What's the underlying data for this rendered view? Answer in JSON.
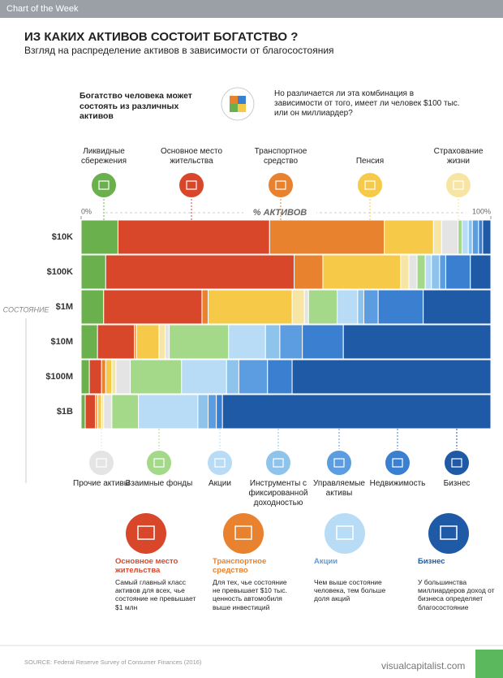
{
  "header": "Chart of the Week",
  "intro": {
    "left": "Богатство человека может состоять из различных активов",
    "right": "Но различается ли эта комбинация в зависимости от того, имеет ли человек $100 тыс. или он миллиардер?"
  },
  "chart_data": {
    "type": "stacked_bar_horizontal",
    "title": "ИЗ КАКИХ АКТИВОВ СОСТОИТ БОГАТСТВО ?",
    "subtitle": "Взгляд на распределение активов в зависимости от благосостояния",
    "x_label": "% АКТИВОВ",
    "y_label": "СОСТОЯНИЕ",
    "xlim": [
      0,
      100
    ],
    "xticks": [
      {
        "value": 0,
        "label": "0%"
      },
      {
        "value": 100,
        "label": "100%"
      }
    ],
    "categories": [
      "$10K",
      "$100K",
      "$1M",
      "$10M",
      "$100M",
      "$1B"
    ],
    "series": [
      {
        "name": "Ликвидные сбережения",
        "color": "#6ab04c",
        "values": [
          9,
          6,
          5.5,
          4,
          2,
          1
        ]
      },
      {
        "name": "Основное место жительства",
        "color": "#d9472b",
        "values": [
          37,
          46,
          24,
          9,
          3,
          2.5
        ]
      },
      {
        "name": "Транспортное средство",
        "color": "#e8822e",
        "values": [
          28,
          7,
          1.5,
          0.5,
          1,
          0.5
        ]
      },
      {
        "name": "Пенсия",
        "color": "#f7c948",
        "values": [
          12,
          19,
          20.5,
          5.5,
          1.5,
          1
        ]
      },
      {
        "name": "Страхование жизни",
        "color": "#f7e6a3",
        "values": [
          2,
          2,
          3,
          1.5,
          1,
          0.5
        ]
      },
      {
        "name": "Прочие активы",
        "color": "#e4e4e4",
        "values": [
          4,
          2,
          1,
          1,
          3.5,
          2
        ]
      },
      {
        "name": "Взаимные фонды",
        "color": "#a5d98a",
        "values": [
          1,
          2,
          7,
          14.5,
          12.5,
          6.5
        ]
      },
      {
        "name": "Акции",
        "color": "#b8dcf5",
        "values": [
          1.5,
          1.5,
          5,
          9,
          11,
          14.5
        ]
      },
      {
        "name": "Инструменты с фиксированной доходностью",
        "color": "#8ec4ec",
        "values": [
          1,
          2,
          1.5,
          3.5,
          3,
          2.5
        ]
      },
      {
        "name": "Управляемые активы",
        "color": "#5b9de0",
        "values": [
          1.5,
          1.5,
          3.5,
          5.5,
          7,
          2
        ]
      },
      {
        "name": "Недвижимость",
        "color": "#3b7fd1",
        "values": [
          1,
          6,
          11,
          10,
          6,
          1.5
        ]
      },
      {
        "name": "Бизнес",
        "color": "#1f5aa6",
        "values": [
          2,
          5,
          16.5,
          36,
          48.5,
          65.5
        ]
      }
    ]
  },
  "cards": [
    {
      "title": "Основное место жительства",
      "text": "Самый главный класс активов для всех, чье состояние не превышает $1 млн"
    },
    {
      "title": "Транспортное средство",
      "text": "Для тех, чье состояние не превышает $10 тыс. ценность автомобиля выше инвестиций"
    },
    {
      "title": "Акции",
      "text": "Чем выше состояние человека, тем больше доля акций"
    },
    {
      "title": "Бизнес",
      "text": "У большинства миллиардеров доход от бизнеса определяет благосостояние"
    }
  ],
  "source": "SOURCE: Federal Reserve Survey of Consumer Finances (2016)",
  "brand": "visualcapitalist.com"
}
